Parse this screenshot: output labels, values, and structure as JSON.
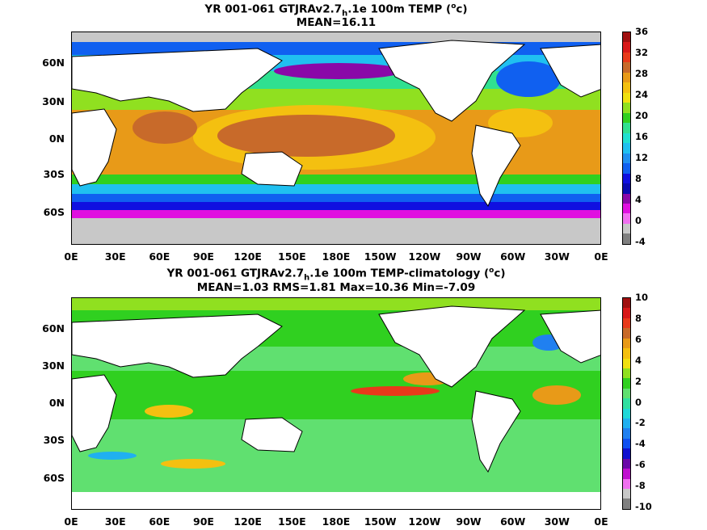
{
  "top": {
    "title_pre": "YR 001-061 GTJRAv2.7",
    "title_sub": "h",
    "title_post": ".1e 100m TEMP (",
    "title_unit": "o",
    "title_end": "c)",
    "stats": "MEAN=16.11",
    "colorbar_ticks": [
      "36",
      "32",
      "28",
      "24",
      "20",
      "16",
      "12",
      "8",
      "4",
      "0",
      "-4"
    ],
    "colorbar_colors": [
      "#a01010",
      "#d81818",
      "#e83a1a",
      "#c86a2a",
      "#e89a18",
      "#f4c010",
      "#f0e010",
      "#90e020",
      "#30d020",
      "#30e090",
      "#20e0d0",
      "#20c0f0",
      "#2090f0",
      "#1060f0",
      "#1010e0",
      "#0a0ab0",
      "#8a08a8",
      "#e010e0",
      "#f070f0",
      "#c8c8c8",
      "#808080"
    ]
  },
  "bottom": {
    "title_pre": "YR 001-061 GTJRAv2.7",
    "title_sub": "h",
    "title_post": ".1e 100m TEMP-climatology (",
    "title_unit": "o",
    "title_end": "c)",
    "stats": "MEAN=1.03   RMS=1.81   Max=10.36   Min=-7.09",
    "colorbar_ticks": [
      "10",
      "8",
      "6",
      "4",
      "2",
      "0",
      "-2",
      "-4",
      "-6",
      "-8",
      "-10"
    ],
    "colorbar_colors": [
      "#a01010",
      "#d81818",
      "#e83a1a",
      "#c86a2a",
      "#e89a18",
      "#f4c010",
      "#f0e010",
      "#90e020",
      "#30d020",
      "#60e070",
      "#30e0a0",
      "#20d8d8",
      "#20b0f0",
      "#2080f0",
      "#1050f0",
      "#1010d0",
      "#6a08a8",
      "#c010d0",
      "#f070f0",
      "#c8c8c8",
      "#808080"
    ]
  },
  "axes": {
    "lat_labels": [
      "60N",
      "30N",
      "0N",
      "30S",
      "60S"
    ],
    "lon_labels": [
      "0E",
      "30E",
      "60E",
      "90E",
      "120E",
      "150E",
      "180E",
      "150W",
      "120W",
      "90W",
      "60W",
      "30W",
      "0E"
    ]
  }
}
